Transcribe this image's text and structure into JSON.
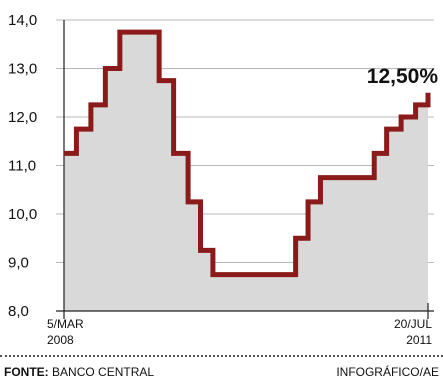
{
  "chart_data": {
    "type": "area",
    "step": "post",
    "y_ticks": [
      "8,0",
      "9,0",
      "10,0",
      "11,0",
      "12,0",
      "13,0",
      "14,0"
    ],
    "ylim": [
      8.0,
      14.0
    ],
    "x_start_label": {
      "line1": "5/MAR",
      "line2": "2008"
    },
    "x_end_label": {
      "line1": "20/JUL",
      "line2": "2011"
    },
    "x_range": [
      "2008-03-05",
      "2011-07-20"
    ],
    "grid": true,
    "series": [
      {
        "points": [
          {
            "x": "2008-03-05",
            "y": 11.25
          },
          {
            "x": "2008-04-16",
            "y": 11.75
          },
          {
            "x": "2008-06-04",
            "y": 12.25
          },
          {
            "x": "2008-07-23",
            "y": 13.0
          },
          {
            "x": "2008-09-10",
            "y": 13.75
          },
          {
            "x": "2009-01-21",
            "y": 12.75
          },
          {
            "x": "2009-03-11",
            "y": 11.25
          },
          {
            "x": "2009-04-29",
            "y": 10.25
          },
          {
            "x": "2009-06-10",
            "y": 9.25
          },
          {
            "x": "2009-07-22",
            "y": 8.75
          },
          {
            "x": "2010-04-28",
            "y": 9.5
          },
          {
            "x": "2010-06-09",
            "y": 10.25
          },
          {
            "x": "2010-07-21",
            "y": 10.75
          },
          {
            "x": "2011-01-19",
            "y": 11.25
          },
          {
            "x": "2011-03-02",
            "y": 11.75
          },
          {
            "x": "2011-04-20",
            "y": 12.0
          },
          {
            "x": "2011-06-08",
            "y": 12.25
          },
          {
            "x": "2011-07-20",
            "y": 12.5
          }
        ]
      }
    ],
    "annotation": {
      "text": "12,50%"
    },
    "colors": {
      "line": "#8b1a1a",
      "area": "#d9d9d9",
      "grid": "#b8b8b8",
      "axis": "#222222"
    }
  },
  "footer": {
    "source_label": "FONTE:",
    "source_value": "BANCO CENTRAL",
    "credit": "INFOGRÁFICO/AE"
  }
}
